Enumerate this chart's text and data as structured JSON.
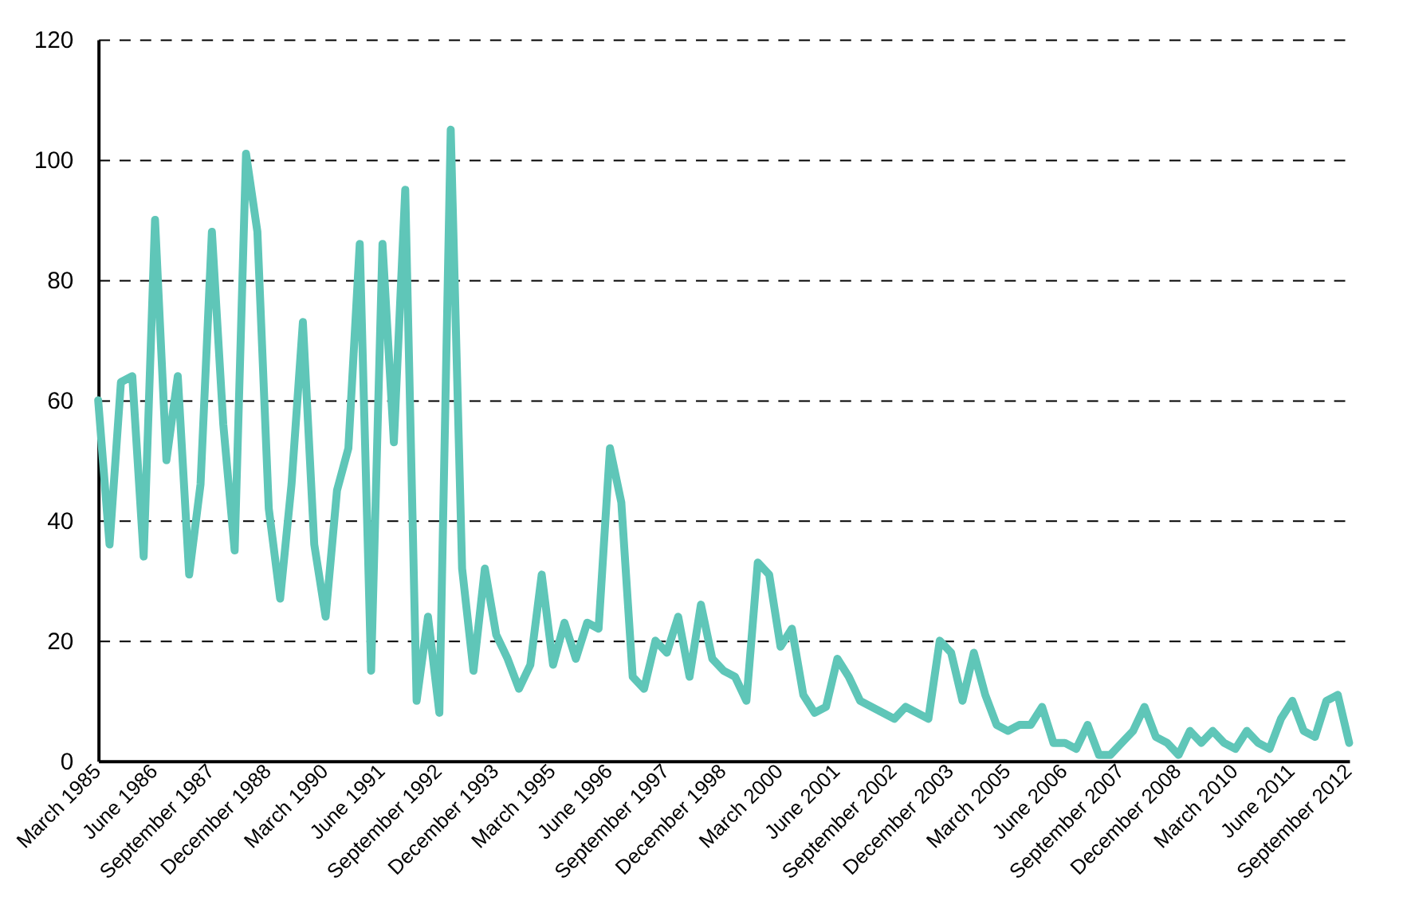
{
  "chart_data": {
    "type": "line",
    "categories": [
      "March 1985",
      null,
      null,
      null,
      null,
      "June 1986",
      null,
      null,
      null,
      null,
      "September 1987",
      null,
      null,
      null,
      null,
      "December 1988",
      null,
      null,
      null,
      null,
      "March 1990",
      null,
      null,
      null,
      null,
      "June 1991",
      null,
      null,
      null,
      null,
      "September 1992",
      null,
      null,
      null,
      null,
      "December 1993",
      null,
      null,
      null,
      null,
      "March 1995",
      null,
      null,
      null,
      null,
      "June 1996",
      null,
      null,
      null,
      null,
      "September 1997",
      null,
      null,
      null,
      null,
      "December 1998",
      null,
      null,
      null,
      null,
      "March 2000",
      null,
      null,
      null,
      null,
      "June 2001",
      null,
      null,
      null,
      null,
      "September 2002",
      null,
      null,
      null,
      null,
      "December 2003",
      null,
      null,
      null,
      null,
      "March 2005",
      null,
      null,
      null,
      null,
      "June 2006",
      null,
      null,
      null,
      null,
      "September 2007",
      null,
      null,
      null,
      null,
      "December 2008",
      null,
      null,
      null,
      null,
      "March 2010",
      null,
      null,
      null,
      null,
      "June 2011",
      null,
      null,
      null,
      null,
      "September 2012"
    ],
    "series": [
      {
        "color": "#5fc6b8",
        "values": [
          60,
          36,
          63,
          64,
          34,
          90,
          50,
          64,
          31,
          46,
          88,
          56,
          35,
          101,
          88,
          42,
          27,
          46,
          73,
          36,
          24,
          45,
          52,
          86,
          15,
          86,
          53,
          95,
          10,
          24,
          8,
          105,
          32,
          15,
          32,
          21,
          17,
          12,
          16,
          31,
          16,
          23,
          17,
          23,
          22,
          52,
          43,
          14,
          12,
          20,
          18,
          24,
          14,
          26,
          17,
          15,
          14,
          10,
          33,
          31,
          19,
          22,
          11,
          8,
          9,
          17,
          14,
          10,
          9,
          8,
          7,
          9,
          8,
          7,
          20,
          18,
          10,
          18,
          11,
          6,
          5,
          6,
          6,
          9,
          3,
          3,
          2,
          6,
          1,
          1,
          3,
          5,
          9,
          4,
          3,
          1,
          5,
          3,
          5,
          3,
          2,
          5,
          3,
          2,
          7,
          10,
          5,
          4,
          10,
          11,
          3
        ]
      }
    ],
    "ylim": [
      0,
      120
    ],
    "yticks": [
      0,
      20,
      40,
      60,
      80,
      100,
      120
    ],
    "grid": "y",
    "line_style": "solid",
    "marker": "none"
  }
}
